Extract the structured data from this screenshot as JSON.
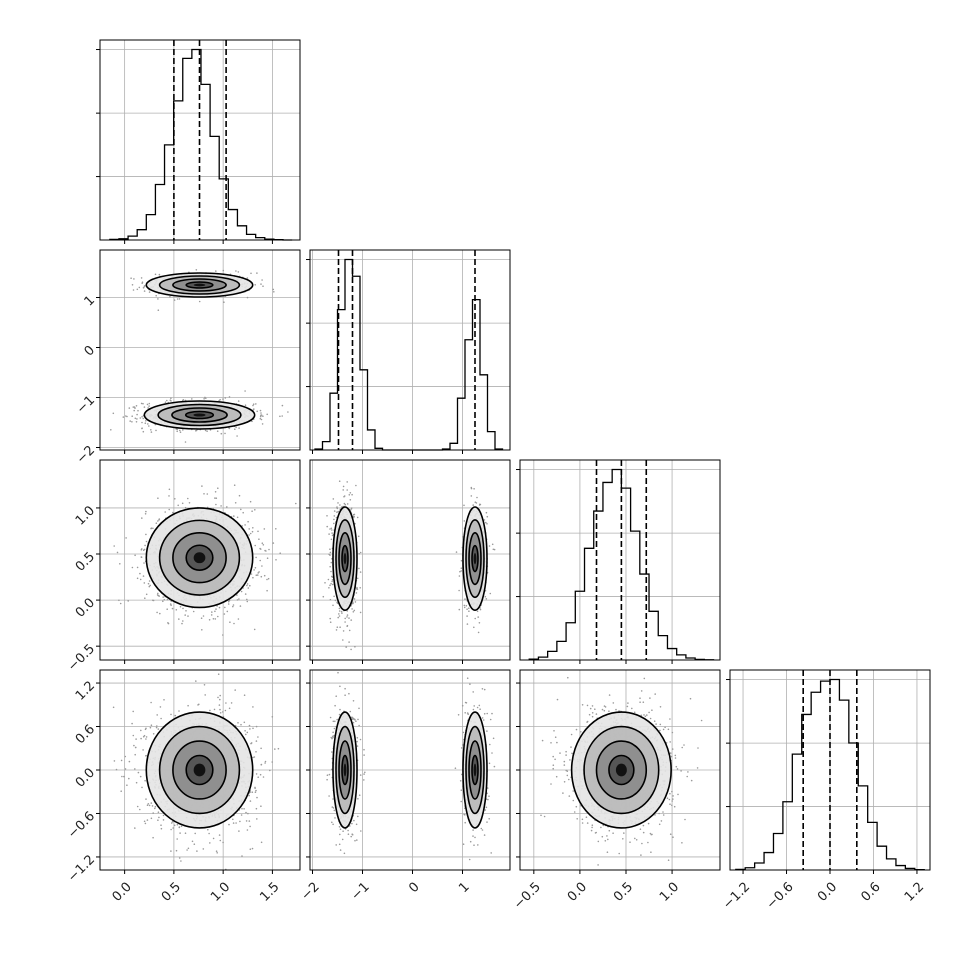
{
  "chart_data": {
    "type": "corner",
    "n_parameters": 4,
    "grid": true,
    "parameters": [
      {
        "name": "",
        "range": [
          -0.25,
          1.78
        ],
        "ticks": [
          0.0,
          0.5,
          1.0,
          1.5
        ],
        "tick_labels": [
          "0.0",
          "0.5",
          "1.0",
          "1.5"
        ],
        "quantiles": [
          0.5,
          0.76,
          1.03
        ]
      },
      {
        "name": "",
        "range": [
          -2.05,
          1.95
        ],
        "ticks": [
          -2,
          -1,
          0,
          1
        ],
        "tick_labels": [
          "−2",
          "−1",
          "0",
          "1"
        ],
        "quantiles": [
          -1.48,
          -1.2,
          1.25
        ]
      },
      {
        "name": "",
        "range": [
          -0.65,
          1.52
        ],
        "ticks": [
          -0.5,
          0.0,
          0.5,
          1.0
        ],
        "tick_labels": [
          "−0.5",
          "0.0",
          "0.5",
          "1.0"
        ],
        "quantiles": [
          0.18,
          0.45,
          0.72
        ]
      },
      {
        "name": "",
        "range": [
          -1.38,
          1.38
        ],
        "ticks": [
          -1.2,
          -0.6,
          0.0,
          0.6,
          1.2
        ],
        "tick_labels": [
          "−1.2",
          "−0.6",
          "0.0",
          "0.6",
          "1.2"
        ],
        "quantiles": [
          -0.37,
          0.0,
          0.37
        ]
      }
    ],
    "histograms": [
      {
        "parameter": 0,
        "edges_range": [
          -0.15,
          1.7
        ],
        "bins": 20,
        "counts": [
          2,
          4,
          13,
          35,
          86,
          188,
          322,
          471,
          615,
          645,
          527,
          351,
          207,
          103,
          48,
          19,
          8,
          3,
          1,
          0
        ]
      },
      {
        "parameter": 1,
        "edges_range": [
          -1.95,
          1.8
        ],
        "bins": 25,
        "counts": [
          3,
          25,
          170,
          420,
          570,
          520,
          240,
          60,
          5,
          0,
          0,
          0,
          0,
          0,
          0,
          0,
          0,
          3,
          20,
          155,
          330,
          450,
          225,
          55,
          3
        ]
      },
      {
        "parameter": 2,
        "edges_range": [
          -0.55,
          1.45
        ],
        "bins": 20,
        "counts": [
          3,
          10,
          30,
          65,
          130,
          240,
          390,
          520,
          620,
          665,
          600,
          450,
          300,
          170,
          85,
          40,
          18,
          7,
          2,
          1
        ]
      },
      {
        "parameter": 3,
        "edges_range": [
          -1.3,
          1.3
        ],
        "bins": 20,
        "counts": [
          2,
          7,
          22,
          55,
          115,
          215,
          365,
          490,
          560,
          595,
          600,
          535,
          400,
          265,
          150,
          75,
          35,
          14,
          5,
          1
        ]
      }
    ],
    "pairs": [
      {
        "x": 0,
        "y": 1,
        "clusters": [
          {
            "mean": [
              0.76,
              1.25
            ],
            "sd": [
              0.27,
              0.12
            ],
            "weight": 0.38
          },
          {
            "mean": [
              0.76,
              -1.35
            ],
            "sd": [
              0.28,
              0.14
            ],
            "weight": 0.62
          }
        ]
      },
      {
        "x": 0,
        "y": 2,
        "clusters": [
          {
            "mean": [
              0.76,
              0.46
            ],
            "sd": [
              0.27,
              0.27
            ],
            "weight": 1.0
          }
        ]
      },
      {
        "x": 1,
        "y": 2,
        "clusters": [
          {
            "mean": [
              -1.35,
              0.45
            ],
            "sd": [
              0.12,
              0.28
            ],
            "weight": 0.62
          },
          {
            "mean": [
              1.25,
              0.45
            ],
            "sd": [
              0.12,
              0.28
            ],
            "weight": 0.38
          }
        ]
      },
      {
        "x": 0,
        "y": 3,
        "clusters": [
          {
            "mean": [
              0.76,
              0.0
            ],
            "sd": [
              0.27,
              0.4
            ],
            "weight": 1.0
          }
        ]
      },
      {
        "x": 1,
        "y": 3,
        "clusters": [
          {
            "mean": [
              -1.35,
              0.0
            ],
            "sd": [
              0.12,
              0.4
            ],
            "weight": 0.62
          },
          {
            "mean": [
              1.25,
              0.0
            ],
            "sd": [
              0.12,
              0.4
            ],
            "weight": 0.38
          }
        ]
      },
      {
        "x": 2,
        "y": 3,
        "clusters": [
          {
            "mean": [
              0.45,
              0.0
            ],
            "sd": [
              0.27,
              0.4
            ],
            "weight": 1.0
          }
        ]
      }
    ],
    "contour_levels_sigma": [
      0.5,
      1.0,
      1.5,
      2.0
    ]
  }
}
